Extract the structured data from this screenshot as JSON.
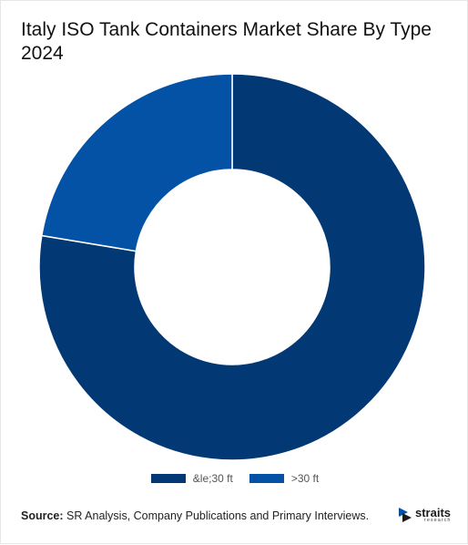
{
  "chart_data": {
    "type": "pie",
    "style": "donut",
    "title": "Italy ISO Tank Containers Market Share By Type 2024",
    "categories": [
      "&le;30 ft",
      ">30 ft"
    ],
    "values": [
      77.6,
      22.4
    ],
    "unit": "%",
    "colors": [
      "#023873",
      "#0352A5"
    ],
    "legend_position": "bottom"
  },
  "footer": {
    "source_label": "Source:",
    "source_text": " SR Analysis, Company Publications and Primary Interviews."
  },
  "logo": {
    "word": "straits",
    "sub": "research"
  }
}
